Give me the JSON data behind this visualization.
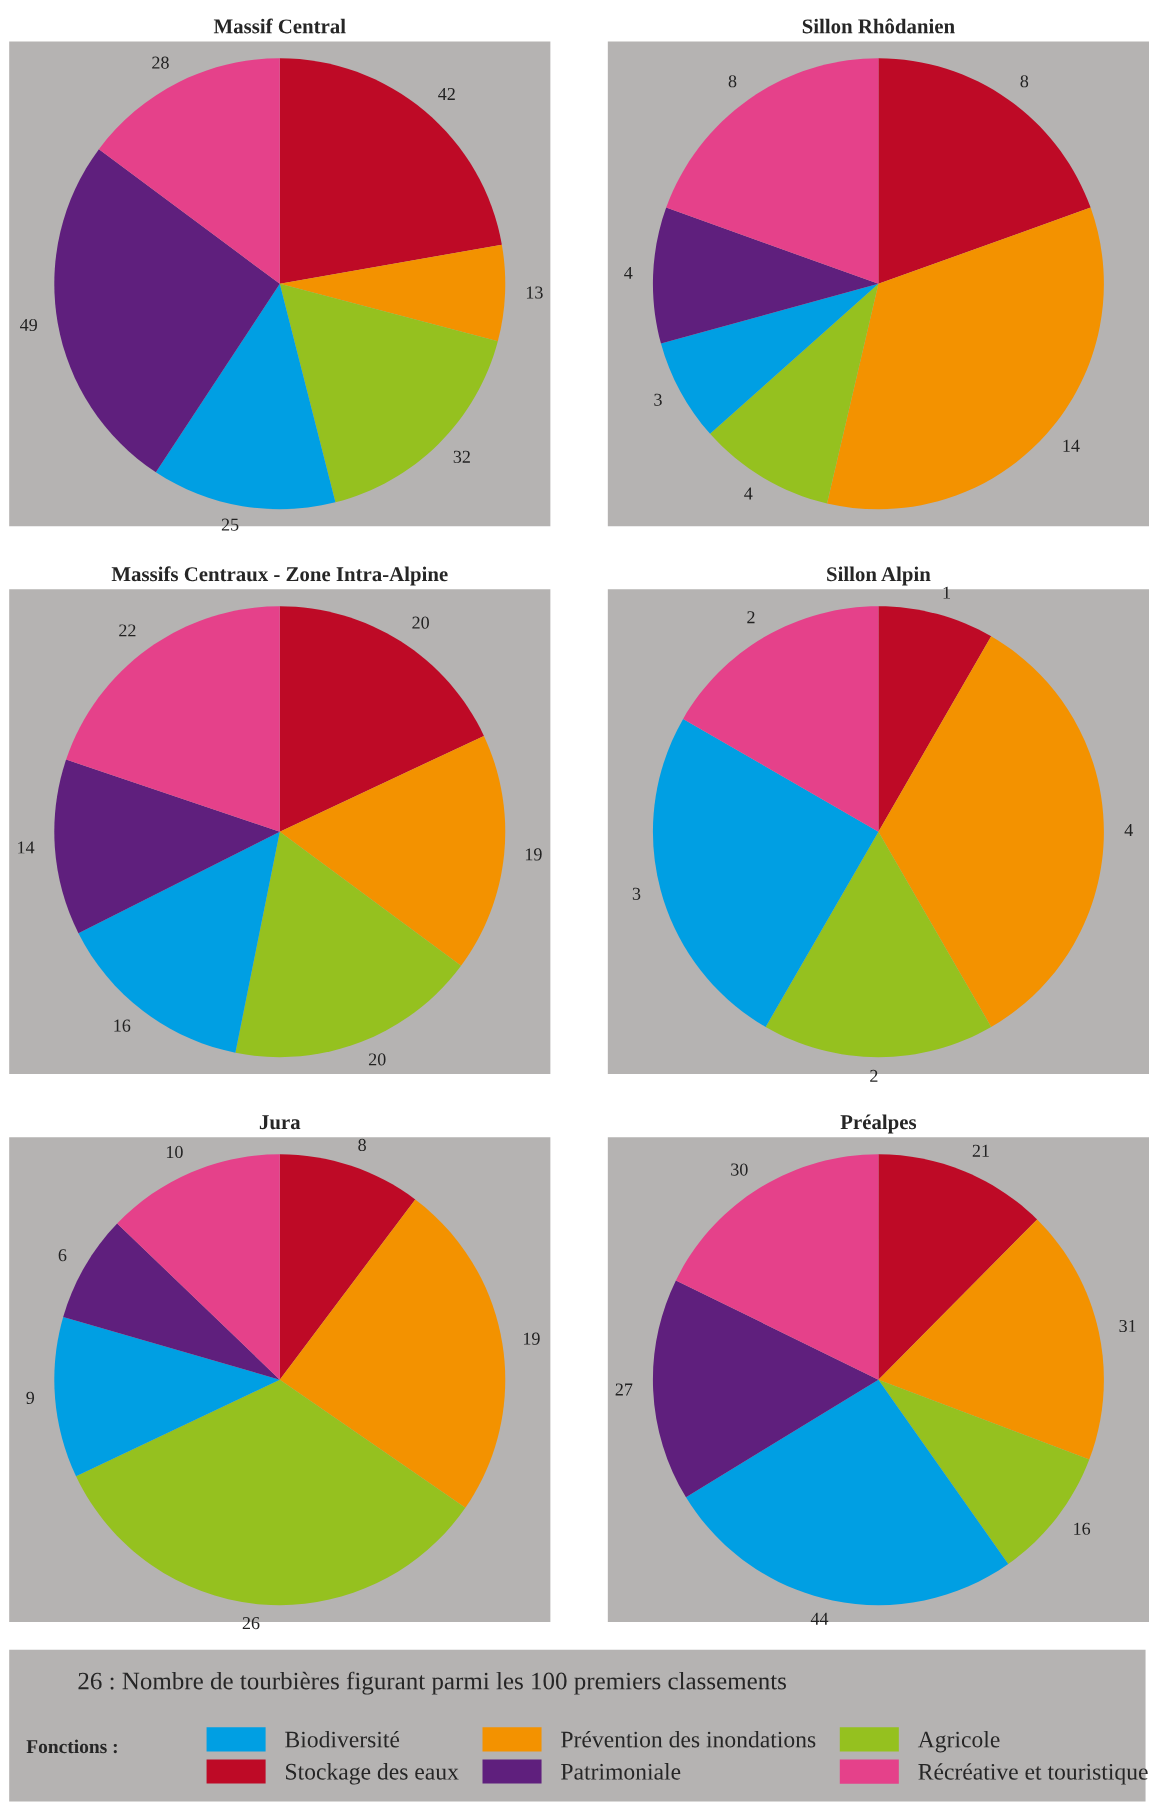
{
  "chart_data": [
    {
      "type": "pie",
      "title": "Massif Central",
      "categories": [
        "Stockage des eaux",
        "Prévention des inondations",
        "Agricole",
        "Biodiversité",
        "Patrimoniale",
        "Récréative et touristique"
      ],
      "values": [
        42,
        13,
        32,
        25,
        49,
        28
      ],
      "colors": [
        "#be0a26",
        "#f39200",
        "#95c11f",
        "#009fe3",
        "#5f1f7d",
        "#e5418a"
      ],
      "data_labels": true,
      "legend": "bottom",
      "legend_title": "Fonctions :",
      "annotations": [
        "26 : Nombre de tourbières figurant parmi les 100 premiers classements"
      ]
    },
    {
      "type": "pie",
      "title": "Sillon Rhôdanien",
      "categories": [
        null,
        null,
        null,
        null,
        null,
        null
      ],
      "values": [
        8,
        14,
        4,
        3,
        4,
        8
      ],
      "colors": [
        "#be0a26",
        "#f39200",
        "#95c11f",
        "#009fe3",
        "#5f1f7d",
        "#e5418a"
      ],
      "data_labels": true
    },
    {
      "type": "pie",
      "title": "Massifs Centraux - Zone Intra-Alpine",
      "categories": [
        null,
        null,
        null,
        null,
        null,
        null
      ],
      "values": [
        20,
        19,
        20,
        16,
        14,
        22
      ],
      "colors": [
        "#be0a26",
        "#f39200",
        "#95c11f",
        "#009fe3",
        "#5f1f7d",
        "#e5418a"
      ],
      "data_labels": true
    },
    {
      "type": "pie",
      "title": "Sillon Alpin",
      "categories": [
        null,
        null,
        null,
        null,
        null
      ],
      "values": [
        1,
        4,
        2,
        3,
        2
      ],
      "colors": [
        "#be0a26",
        "#f39200",
        "#95c11f",
        "#009fe3",
        "#e5418a"
      ],
      "data_labels": true
    },
    {
      "type": "pie",
      "title": "Jura",
      "categories": [
        null,
        null,
        null,
        null,
        null,
        null
      ],
      "values": [
        8,
        19,
        26,
        9,
        6,
        10
      ],
      "colors": [
        "#be0a26",
        "#f39200",
        "#95c11f",
        "#009fe3",
        "#5f1f7d",
        "#e5418a"
      ],
      "data_labels": true
    },
    {
      "type": "pie",
      "title": "Préalpes",
      "categories": [
        null,
        null,
        null,
        null,
        null,
        null
      ],
      "values": [
        21,
        31,
        16,
        44,
        27,
        30
      ],
      "colors": [
        "#be0a26",
        "#f39200",
        "#95c11f",
        "#009fe3",
        "#5f1f7d",
        "#e5418a"
      ],
      "data_labels": true
    }
  ]
}
